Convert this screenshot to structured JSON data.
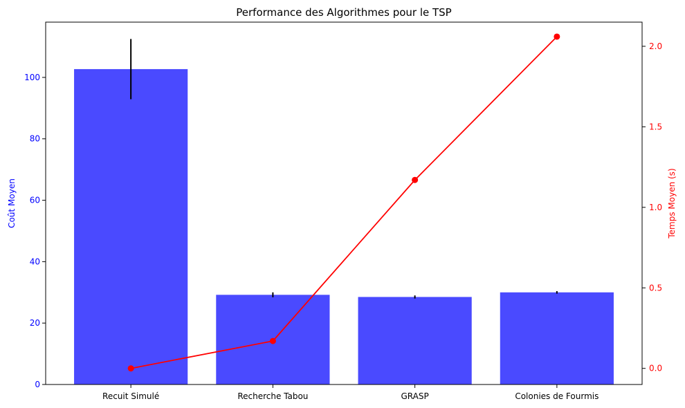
{
  "chart_data": {
    "type": "bar",
    "title": "Performance des Algorithmes pour le TSP",
    "categories": [
      "Recuit Simulé",
      "Recherche Tabou",
      "GRASP",
      "Colonies de Fourmis"
    ],
    "series": [
      {
        "type": "bar",
        "axis": "left",
        "color": "#4a4aff",
        "values": [
          102.7,
          29.2,
          28.5,
          30.0
        ],
        "errors": [
          9.8,
          0.8,
          0.5,
          0.4
        ]
      },
      {
        "type": "line",
        "axis": "right",
        "color": "#ff0000",
        "values": [
          0.0,
          0.17,
          1.17,
          2.06
        ]
      }
    ],
    "y_left": {
      "label": "Coût Moyen",
      "color": "#0000ff",
      "ylim": [
        0,
        118
      ],
      "ticks": [
        0,
        20,
        40,
        60,
        80,
        100
      ],
      "tick_labels": [
        "0",
        "20",
        "40",
        "60",
        "80",
        "100"
      ]
    },
    "y_right": {
      "label": "Temps Moyen (s)",
      "color": "#ff0000",
      "ylim": [
        -0.1,
        2.15
      ],
      "ticks": [
        0.0,
        0.5,
        1.0,
        1.5,
        2.0
      ],
      "tick_labels": [
        "0.0",
        "0.5",
        "1.0",
        "1.5",
        "2.0"
      ]
    },
    "grid": false,
    "legend": "none"
  }
}
